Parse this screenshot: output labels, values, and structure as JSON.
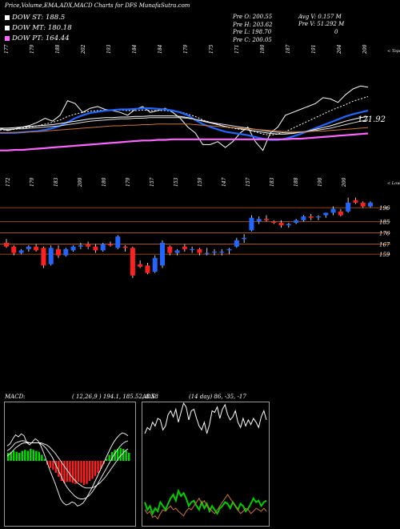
{
  "header": {
    "title": "Price,Volume,EMA,ADX,MACD Charts for DFS MunafaSutra.com",
    "legend": [
      {
        "label": "DOW ST: 188.5",
        "color": "#ffffff"
      },
      {
        "label": "DOW MT: 180.18",
        "color": "#ffffff"
      },
      {
        "label": "DOW PT: 164.44",
        "color": "#ff66ff"
      }
    ],
    "ohlc": [
      "Pre  O: 200.55",
      "Pre  H: 203.62",
      "Pre  L: 198.70",
      "Pre  C: 200.05"
    ],
    "avg_volume": "Avg V: 0.157  M",
    "pre_volume": "Pre  V: 51.292  M",
    "pre_volume_extra": "0"
  },
  "chart_data": [
    {
      "type": "line",
      "name": "ema-panel",
      "top_tick_labels": [
        "177",
        "179",
        "188",
        "202",
        "193",
        "184",
        "184",
        "179",
        "175",
        "171",
        "180",
        "187",
        "191",
        "204",
        "200"
      ],
      "bottom_tick_labels": [
        "172",
        "179",
        "183",
        "200",
        "180",
        "179",
        "157",
        "153",
        "159",
        "147",
        "157",
        "183",
        "188",
        "190",
        "200"
      ],
      "top_right_label": "< Tops",
      "bottom_right_label": "< Lows",
      "last_value_label": "121.92",
      "series": [
        {
          "color": "#ffffff",
          "values": [
            148,
            144,
            147,
            150,
            153,
            158,
            165,
            160,
            170,
            195,
            190,
            175,
            182,
            185,
            180,
            178,
            175,
            170,
            180,
            185,
            175,
            178,
            182,
            175,
            165,
            150,
            140,
            120,
            120,
            125,
            115,
            125,
            140,
            150,
            125,
            110,
            140,
            150,
            170,
            175,
            180,
            185,
            190,
            200,
            198,
            192,
            205,
            215,
            220,
            218
          ]
        },
        {
          "color": "#ffffff",
          "values": [
            145,
            145,
            146,
            148,
            150,
            152,
            155,
            158,
            162,
            168,
            172,
            175,
            177,
            178,
            179,
            179,
            179,
            178,
            178,
            179,
            178,
            178,
            178,
            177,
            176,
            172,
            168,
            162,
            158,
            155,
            150,
            148,
            146,
            145,
            142,
            138,
            136,
            138,
            142,
            148,
            154,
            160,
            166,
            172,
            178,
            183,
            188,
            194,
            198,
            202
          ]
        },
        {
          "color": "#2266ff",
          "values": [
            140,
            140,
            140,
            141,
            142,
            143,
            145,
            148,
            152,
            158,
            165,
            170,
            174,
            176,
            178,
            179,
            180,
            180,
            181,
            182,
            182,
            181,
            180,
            178,
            175,
            170,
            162,
            155,
            150,
            146,
            142,
            140,
            138,
            136,
            133,
            130,
            128,
            128,
            130,
            134,
            138,
            143,
            148,
            153,
            158,
            163,
            168,
            172,
            175,
            178
          ]
        },
        {
          "color": "#ffffff",
          "values": [
            148,
            148,
            149,
            150,
            151,
            152,
            153,
            154,
            156,
            158,
            160,
            162,
            164,
            165,
            166,
            166,
            167,
            167,
            168,
            168,
            169,
            169,
            169,
            169,
            168,
            166,
            163,
            160,
            157,
            154,
            151,
            149,
            147,
            145,
            143,
            141,
            139,
            138,
            138,
            139,
            141,
            143,
            146,
            149,
            152,
            156,
            160,
            163,
            166,
            168
          ]
        },
        {
          "color": "#dddddd",
          "values": [
            146,
            146,
            147,
            147,
            148,
            149,
            150,
            151,
            152,
            154,
            156,
            158,
            160,
            161,
            162,
            163,
            164,
            164,
            165,
            165,
            166,
            166,
            166,
            166,
            166,
            165,
            163,
            161,
            158,
            156,
            154,
            152,
            150,
            148,
            146,
            144,
            142,
            141,
            140,
            140,
            141,
            142,
            144,
            146,
            148,
            151,
            154,
            157,
            160,
            162
          ]
        },
        {
          "color": "#cc7733",
          "values": [
            140,
            140,
            141,
            141,
            142,
            142,
            143,
            144,
            145,
            146,
            147,
            148,
            149,
            150,
            151,
            152,
            152,
            153,
            153,
            154,
            154,
            155,
            155,
            155,
            155,
            155,
            154,
            153,
            152,
            151,
            150,
            149,
            148,
            147,
            146,
            145,
            144,
            143,
            142,
            142,
            142,
            142,
            143,
            143,
            144,
            145,
            146,
            147,
            148,
            149
          ]
        },
        {
          "color": "#ff66ff",
          "values": [
            110,
            110,
            111,
            111,
            112,
            113,
            114,
            115,
            116,
            117,
            118,
            119,
            120,
            121,
            122,
            123,
            124,
            125,
            126,
            127,
            127,
            128,
            128,
            129,
            129,
            129,
            129,
            129,
            129,
            129,
            129,
            129,
            129,
            129,
            129,
            129,
            129,
            129,
            129,
            130,
            130,
            131,
            132,
            133,
            134,
            135,
            136,
            137,
            138,
            139
          ]
        }
      ]
    },
    {
      "type": "candlestick",
      "name": "price-panel",
      "price_levels": [
        196,
        185,
        176,
        167,
        159
      ],
      "candles": [
        {
          "o": 168,
          "h": 171,
          "l": 164,
          "c": 165
        },
        {
          "o": 165,
          "h": 166,
          "l": 158,
          "c": 160
        },
        {
          "o": 160,
          "h": 163,
          "l": 159,
          "c": 162
        },
        {
          "o": 163,
          "h": 166,
          "l": 161,
          "c": 165
        },
        {
          "o": 165,
          "h": 167,
          "l": 161,
          "c": 162
        },
        {
          "o": 164,
          "h": 165,
          "l": 148,
          "c": 150
        },
        {
          "o": 151,
          "h": 166,
          "l": 150,
          "c": 164
        },
        {
          "o": 163,
          "h": 166,
          "l": 156,
          "c": 158
        },
        {
          "o": 158,
          "h": 164,
          "l": 157,
          "c": 163
        },
        {
          "o": 162,
          "h": 166,
          "l": 161,
          "c": 165
        },
        {
          "o": 165,
          "h": 168,
          "l": 163,
          "c": 166
        },
        {
          "o": 167,
          "h": 169,
          "l": 163,
          "c": 165
        },
        {
          "o": 165,
          "h": 167,
          "l": 160,
          "c": 162
        },
        {
          "o": 162,
          "h": 168,
          "l": 161,
          "c": 167
        },
        {
          "o": 167,
          "h": 169,
          "l": 165,
          "c": 166
        },
        {
          "o": 164,
          "h": 174,
          "l": 163,
          "c": 173
        },
        {
          "o": 165,
          "h": 166,
          "l": 161,
          "c": 164
        },
        {
          "o": 164,
          "h": 165,
          "l": 140,
          "c": 142
        },
        {
          "o": 151,
          "h": 154,
          "l": 148,
          "c": 149
        },
        {
          "o": 150,
          "h": 152,
          "l": 143,
          "c": 144
        },
        {
          "o": 145,
          "h": 158,
          "l": 144,
          "c": 156
        },
        {
          "o": 150,
          "h": 170,
          "l": 148,
          "c": 168
        },
        {
          "o": 165,
          "h": 166,
          "l": 158,
          "c": 160
        },
        {
          "o": 160,
          "h": 163,
          "l": 158,
          "c": 162
        },
        {
          "o": 165,
          "h": 167,
          "l": 161,
          "c": 163
        },
        {
          "o": 163,
          "h": 165,
          "l": 160,
          "c": 163
        },
        {
          "o": 163,
          "h": 164,
          "l": 158,
          "c": 160
        },
        {
          "o": 160,
          "h": 164,
          "l": 158,
          "c": 160
        },
        {
          "o": 161,
          "h": 163,
          "l": 158,
          "c": 161
        },
        {
          "o": 161,
          "h": 163,
          "l": 158,
          "c": 161
        },
        {
          "o": 162,
          "h": 164,
          "l": 159,
          "c": 163
        },
        {
          "o": 165,
          "h": 172,
          "l": 164,
          "c": 170
        },
        {
          "o": 171,
          "h": 175,
          "l": 168,
          "c": 172
        },
        {
          "o": 178,
          "h": 190,
          "l": 177,
          "c": 188
        },
        {
          "o": 185,
          "h": 189,
          "l": 183,
          "c": 187
        },
        {
          "o": 187,
          "h": 190,
          "l": 185,
          "c": 186
        },
        {
          "o": 185,
          "h": 186,
          "l": 183,
          "c": 184
        },
        {
          "o": 184,
          "h": 186,
          "l": 180,
          "c": 182
        },
        {
          "o": 182,
          "h": 184,
          "l": 180,
          "c": 183
        },
        {
          "o": 184,
          "h": 187,
          "l": 183,
          "c": 186
        },
        {
          "o": 186,
          "h": 190,
          "l": 185,
          "c": 189
        },
        {
          "o": 189,
          "h": 191,
          "l": 186,
          "c": 188
        },
        {
          "o": 189,
          "h": 190,
          "l": 186,
          "c": 189
        },
        {
          "o": 190,
          "h": 192,
          "l": 188,
          "c": 192
        },
        {
          "o": 192,
          "h": 197,
          "l": 190,
          "c": 195
        },
        {
          "o": 193,
          "h": 195,
          "l": 189,
          "c": 190
        },
        {
          "o": 193,
          "h": 204,
          "l": 192,
          "c": 200
        },
        {
          "o": 202,
          "h": 204,
          "l": 199,
          "c": 200
        },
        {
          "o": 200,
          "h": 201,
          "l": 196,
          "c": 197
        },
        {
          "o": 197,
          "h": 201,
          "l": 196,
          "c": 200
        }
      ]
    },
    {
      "type": "bar",
      "name": "macd-panel",
      "label": "MACD:",
      "values_label": "( 12,26,9 ) 194.1,  185.52, 8.58",
      "histogram": [
        8,
        9,
        10,
        9,
        8,
        10,
        11,
        10,
        12,
        11,
        10,
        9,
        6,
        2,
        -4,
        -7,
        -9,
        -12,
        -16,
        -20,
        -22,
        -21,
        -21,
        -22,
        -23,
        -21,
        -22,
        -24,
        -23,
        -20,
        -18,
        -15,
        -12,
        -8,
        -3,
        2,
        6,
        9,
        11,
        12,
        13,
        12,
        10,
        8
      ],
      "series": [
        {
          "color": "#ffffff",
          "values": [
            15,
            17,
            22,
            26,
            24,
            27,
            25,
            18,
            16,
            19,
            22,
            20,
            15,
            8,
            0,
            -8,
            -15,
            -22,
            -30,
            -38,
            -42,
            -44,
            -43,
            -41,
            -42,
            -45,
            -44,
            -42,
            -38,
            -33,
            -28,
            -22,
            -16,
            -10,
            -4,
            2,
            8,
            14,
            19,
            23,
            26,
            28,
            27,
            25
          ]
        },
        {
          "color": "#ffffff",
          "values": [
            10,
            12,
            15,
            18,
            19,
            20,
            20,
            19,
            18,
            18,
            18,
            18,
            17,
            15,
            12,
            8,
            4,
            -2,
            -8,
            -14,
            -20,
            -25,
            -29,
            -32,
            -35,
            -37,
            -38,
            -38,
            -37,
            -35,
            -32,
            -28,
            -24,
            -19,
            -14,
            -9,
            -4,
            1,
            6,
            10,
            14,
            17,
            19,
            20
          ]
        },
        {
          "color": "#ffffff",
          "values": [
            5,
            7,
            10,
            13,
            15,
            17,
            18,
            18,
            18,
            18,
            18,
            18,
            18,
            17,
            16,
            14,
            11,
            8,
            4,
            0,
            -4,
            -8,
            -12,
            -16,
            -19,
            -22,
            -24,
            -26,
            -27,
            -27,
            -27,
            -26,
            -24,
            -22,
            -19,
            -16,
            -12,
            -8,
            -4,
            0,
            4,
            7,
            10,
            12
          ]
        }
      ]
    },
    {
      "type": "line",
      "name": "adx-panel",
      "label": "ADX",
      "values_label": "(14 day) 86,  -35,  -17",
      "series": [
        {
          "color": "#ffffff",
          "values": [
            40,
            48,
            45,
            55,
            50,
            60,
            58,
            45,
            50,
            65,
            70,
            62,
            72,
            55,
            68,
            80,
            75,
            58,
            70,
            72,
            60,
            50,
            45,
            55,
            40,
            52,
            70,
            68,
            75,
            60,
            72,
            78,
            65,
            58,
            62,
            70,
            55,
            48,
            60,
            50,
            58,
            52,
            60,
            55,
            48,
            62,
            70,
            58
          ]
        },
        {
          "color": "#00cc00",
          "values": [
            -50,
            -60,
            -55,
            -65,
            -58,
            -62,
            -50,
            -55,
            -60,
            -52,
            -45,
            -40,
            -48,
            -35,
            -42,
            -38,
            -45,
            -55,
            -50,
            -48,
            -55,
            -60,
            -50,
            -58,
            -52,
            -62,
            -55,
            -60,
            -65,
            -58,
            -55,
            -50,
            -52,
            -58,
            -50,
            -55,
            -60,
            -52,
            -55,
            -62,
            -58,
            -52,
            -45,
            -50,
            -48,
            -55,
            -50,
            -48
          ]
        },
        {
          "color": "#cc7733",
          "values": [
            -60,
            -65,
            -62,
            -70,
            -68,
            -72,
            -65,
            -60,
            -62,
            -58,
            -55,
            -60,
            -58,
            -62,
            -65,
            -68,
            -62,
            -58,
            -60,
            -55,
            -50,
            -45,
            -52,
            -48,
            -55,
            -58,
            -62,
            -65,
            -60,
            -55,
            -50,
            -45,
            -40,
            -45,
            -50,
            -55,
            -60,
            -65,
            -62,
            -58,
            -60,
            -65,
            -62,
            -58,
            -60,
            -62,
            -58,
            -62
          ]
        }
      ]
    }
  ]
}
